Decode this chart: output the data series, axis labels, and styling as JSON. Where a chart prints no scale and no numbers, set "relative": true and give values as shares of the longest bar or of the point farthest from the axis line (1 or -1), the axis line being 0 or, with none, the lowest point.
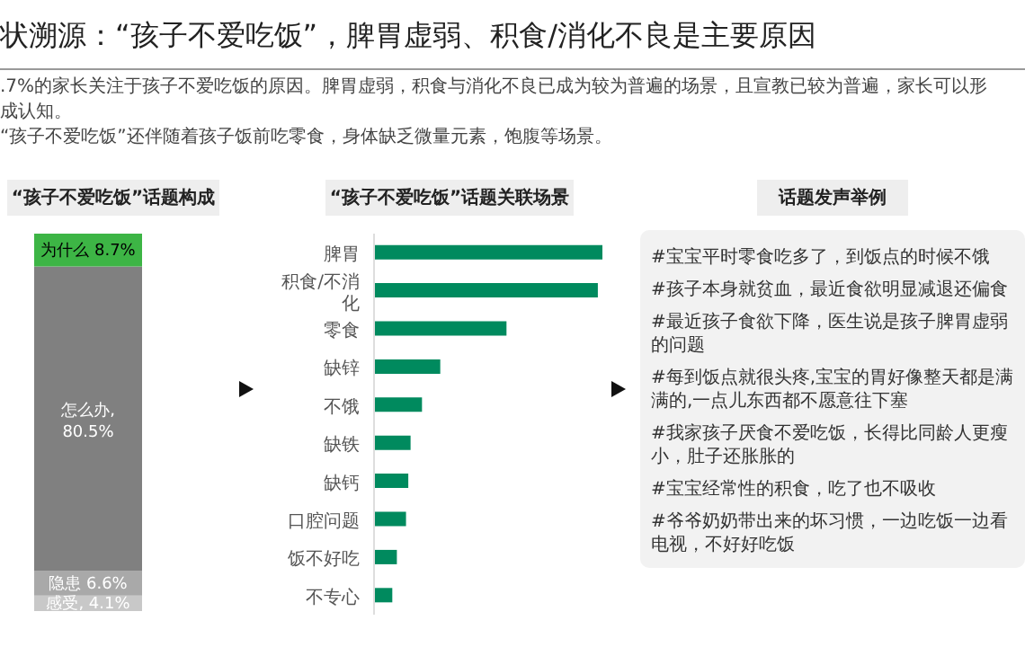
{
  "chart_data": [
    {
      "type": "bar",
      "title": "状溯源：“孩子不爱吃饭”，脾胃虚弱、积食/消化不良是主要原因",
      "subtitle": ".7%的家长关注于孩子不爱吃饭的原因。脾胃虚弱，积食与消化不良已成为较为普遍的场景，且宣教已较为普遍，家长可以形成认知。\n“孩子不爱吃饭”还伴随着孩子饭前吃零食，身体缺乏微量元素，饱腹等场景。",
      "xlabel": "“孩子不爱吃饭”话题构成",
      "stacked": true,
      "categories": [
        null
      ],
      "series": [
        {
          "name": "感受,",
          "color": "#c8c8c8",
          "values": [
            4.1
          ],
          "value_labels": [
            "4.1%"
          ]
        },
        {
          "name": "隐患",
          "color": "#a9a9a9",
          "values": [
            6.6
          ],
          "value_labels": [
            "6.6%"
          ]
        },
        {
          "name": "怎么办,",
          "color": "#808080",
          "values": [
            80.5
          ],
          "value_labels": [
            "80.5%"
          ]
        },
        {
          "name": "为什么",
          "color": "#3db545",
          "values": [
            8.7
          ],
          "value_labels": [
            "8.7%"
          ]
        }
      ]
    },
    {
      "type": "bar",
      "orientation": "horizontal",
      "relative": true,
      "title": "“孩子不爱吃饭”话题关联场景",
      "categories": [
        "脾胃",
        "积食/不消化",
        "零食",
        "缺锌",
        "不饿",
        "缺铁",
        "缺钙",
        "口腔问题",
        "饭不好吃",
        "不专心"
      ],
      "color": "#008a5e",
      "values": [
        1,
        0.98,
        0.58,
        0.29,
        0.21,
        0.16,
        0.15,
        0.14,
        0.1,
        0.08
      ]
    },
    {
      "type": "other",
      "title": "话题发声举例",
      "annotations": [
        "#宝宝平时零食吃多了，到饭点的时候不饿",
        "#孩子本身就贫血，最近食欲明显减退还偏食",
        "#最近孩子食欲下降，医生说是孩子脾胃虚弱的问题",
        "#每到饭点就很头疼,宝宝的胃好像整天都是满满的,一点儿东西都不愿意往下塞",
        "#我家孩子厌食不爱吃饭，长得比同龄人更瘦小，肚子还胀胀的",
        "#宝宝经常性的积食，吃了也不吸收",
        "#爷爷奶奶带出来的坏习惯，一边吃饭一边看电视，不好好吃饭"
      ]
    }
  ]
}
